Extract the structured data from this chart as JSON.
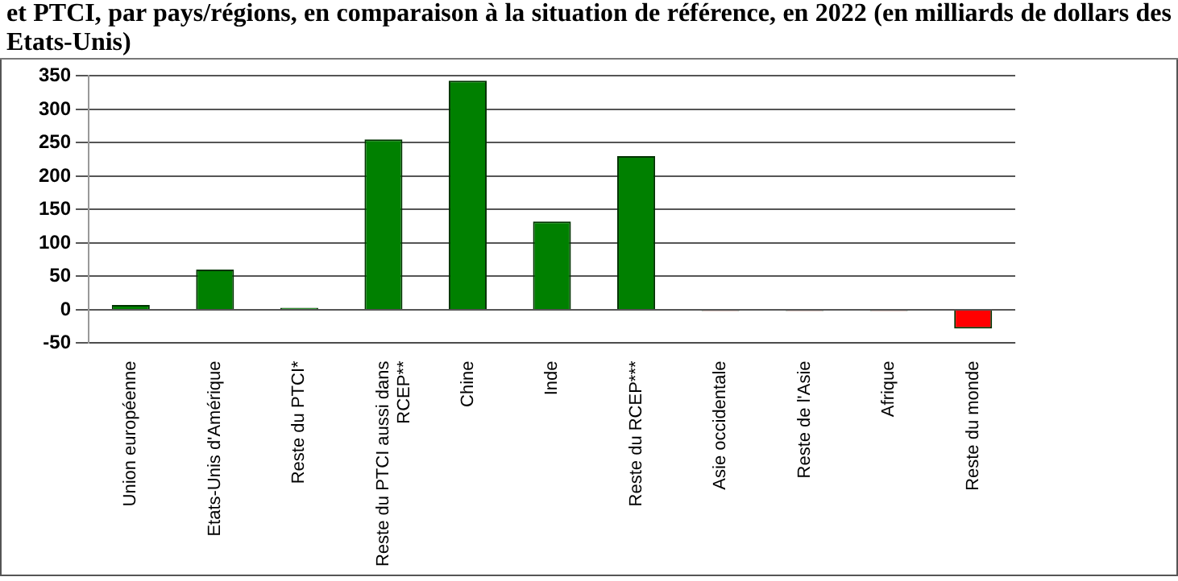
{
  "chart_data": {
    "type": "bar",
    "title": "et PTCI, par pays/régions, en comparaison à la situation de référence, en 2022 (en milliards de dollars des Etats-Unis)",
    "categories": [
      "Union européenne",
      "Etats-Unis d'Amérique",
      "Reste du PTCI*",
      "Reste du PTCI aussi dans\nRCEP**",
      "Chine",
      "Inde",
      "Reste du RCEP***",
      "Asie occidentale",
      "Reste de l'Asie",
      "Afrique",
      "Reste du monde"
    ],
    "values": [
      7,
      60,
      3,
      255,
      343,
      132,
      230,
      -2,
      -2,
      -2,
      -28
    ],
    "colors": [
      "#008000",
      "#008000",
      "#008000",
      "#008000",
      "#008000",
      "#008000",
      "#008000",
      "#c00000",
      "#c00000",
      "#c00000",
      "#ff0000"
    ],
    "ylim": [
      -50,
      350
    ],
    "yticks": [
      -50,
      0,
      50,
      100,
      150,
      200,
      250,
      300,
      350
    ],
    "grid": "y"
  }
}
